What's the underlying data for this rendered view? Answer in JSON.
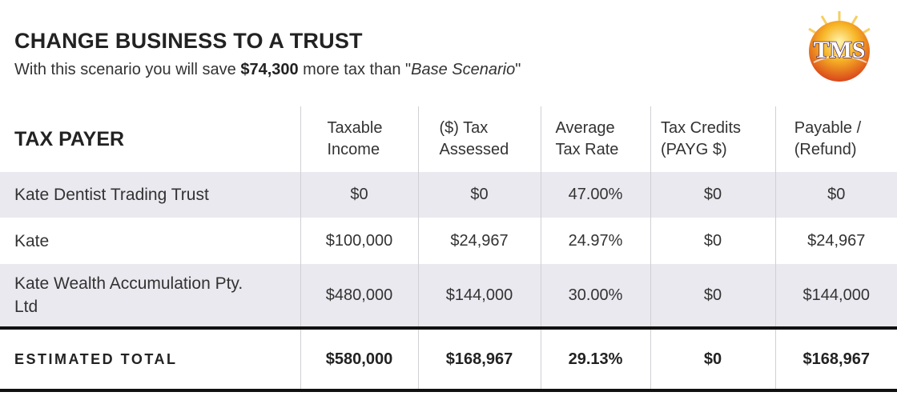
{
  "header": {
    "title": "CHANGE BUSINESS TO A TRUST",
    "subtitle": {
      "before": "With this scenario you will save ",
      "amount": "$74,300",
      "middle": " more tax than \"",
      "scenario": "Base Scenario",
      "after": "\""
    },
    "logo": "TMS"
  },
  "table": {
    "columns": [
      "TAX PAYER",
      "Taxable Income",
      "($) Tax Assessed",
      "Average Tax Rate",
      "Tax Credits (PAYG $)",
      "Payable / (Refund)"
    ],
    "rows": [
      [
        "Kate Dentist Trading Trust",
        "$0",
        "$0",
        "47.00%",
        "$0",
        "$0"
      ],
      [
        "Kate",
        "$100,000",
        "$24,967",
        "24.97%",
        "$0",
        "$24,967"
      ],
      [
        "Kate Wealth Accumulation Pty. Ltd",
        "$480,000",
        "$144,000",
        "30.00%",
        "$0",
        "$144,000"
      ]
    ],
    "total": [
      "ESTIMATED TOTAL",
      "$580,000",
      "$168,967",
      "29.13%",
      "$0",
      "$168,967"
    ]
  }
}
